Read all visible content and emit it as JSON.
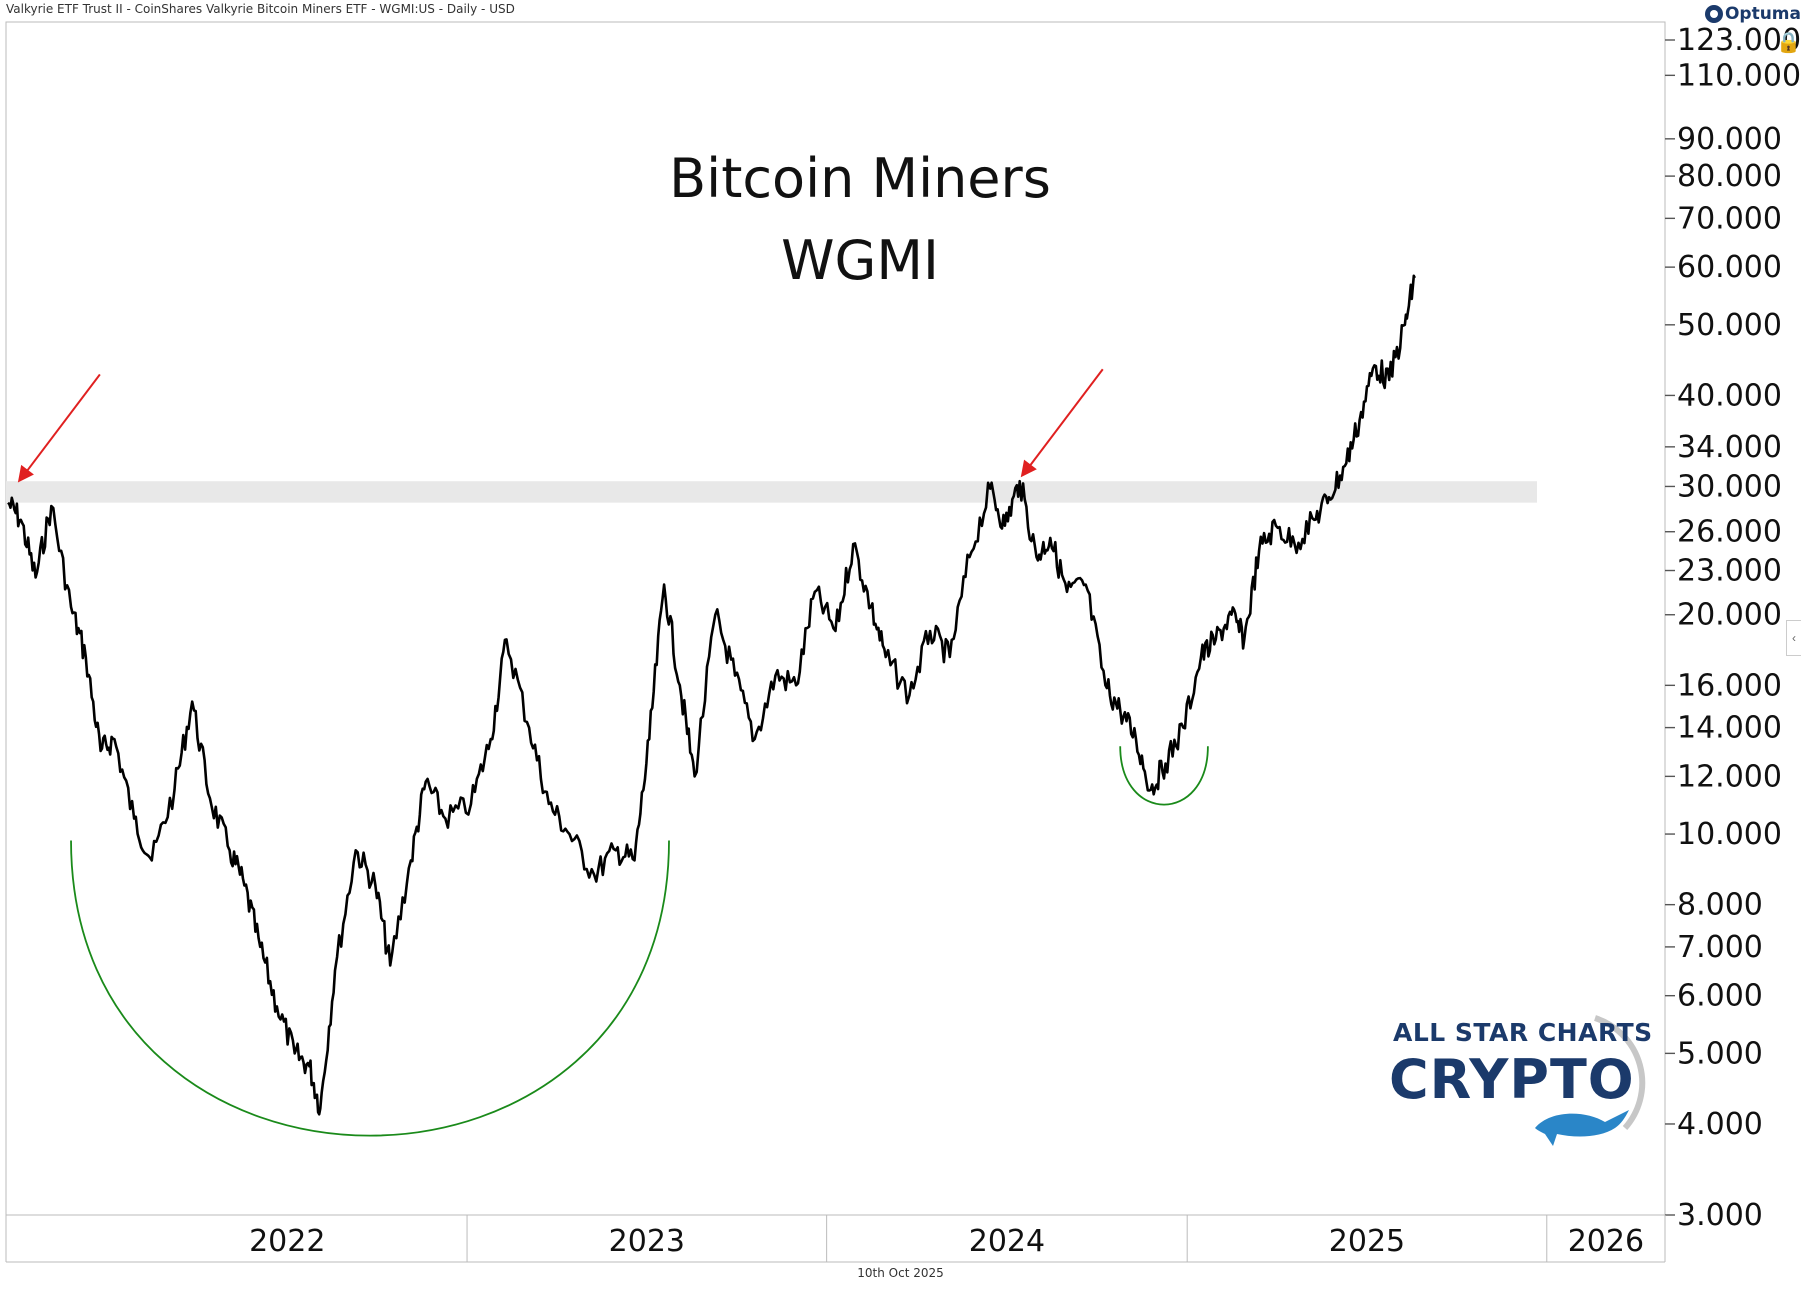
{
  "header": {
    "instrument": "Valkyrie ETF Trust II - CoinShares Valkyrie Bitcoin Miners ETF - WGMI:US - Daily - USD",
    "logo_text": "Optuma",
    "lock_icon": "lock-icon",
    "collapse_icon": "chevron-left-icon"
  },
  "footer": {
    "date": "10th Oct 2025"
  },
  "brand": {
    "line1": "ALL STAR CHARTS",
    "line2": "CRYPTO",
    "icon": "whale-icon"
  },
  "colors": {
    "price_line": "#000000",
    "arrow": "#e02020",
    "arc": "#1a8a1a",
    "band": "#e8e8e8",
    "brand": "#1b3a6b"
  },
  "chart_data": {
    "type": "line",
    "title": "Bitcoin Miners",
    "subtitle": "WGMI",
    "yscale": "log",
    "ylim": [
      3.0,
      123.0
    ],
    "y_ticks": [
      "123.000",
      "110.000",
      "90.000",
      "80.000",
      "70.000",
      "60.000",
      "50.000",
      "40.000",
      "34.000",
      "30.000",
      "26.000",
      "23.000",
      "20.000",
      "16.000",
      "14.000",
      "12.000",
      "10.000",
      "8.000",
      "7.000",
      "6.000",
      "5.000",
      "4.000",
      "3.000"
    ],
    "x_ticks": [
      "2022",
      "2023",
      "2024",
      "2025",
      "2026"
    ],
    "xlim": [
      "2021-09-20",
      "2026-05-01"
    ],
    "resistance_zone": [
      28.5,
      30.5
    ],
    "grid": false,
    "legend": "none",
    "series": [
      {
        "values": [
          [
            "2021-09-22",
            28.5
          ],
          [
            "2021-10-05",
            27.0
          ],
          [
            "2021-10-20",
            22.5
          ],
          [
            "2021-11-05",
            28.2
          ],
          [
            "2021-11-25",
            20.5
          ],
          [
            "2021-12-10",
            17.5
          ],
          [
            "2021-12-25",
            13.0
          ],
          [
            "2022-01-08",
            13.5
          ],
          [
            "2022-01-28",
            10.5
          ],
          [
            "2022-02-15",
            9.2
          ],
          [
            "2022-03-10",
            11.5
          ],
          [
            "2022-03-28",
            15.2
          ],
          [
            "2022-04-15",
            11.2
          ],
          [
            "2022-05-05",
            9.5
          ],
          [
            "2022-05-20",
            8.5
          ],
          [
            "2022-06-05",
            7.0
          ],
          [
            "2022-06-22",
            5.8
          ],
          [
            "2022-07-10",
            5.0
          ],
          [
            "2022-07-25",
            4.8
          ],
          [
            "2022-08-05",
            4.2
          ],
          [
            "2022-08-20",
            6.5
          ],
          [
            "2022-09-10",
            9.5
          ],
          [
            "2022-09-30",
            8.5
          ],
          [
            "2022-10-15",
            6.6
          ],
          [
            "2022-11-05",
            9.2
          ],
          [
            "2022-11-20",
            11.8
          ],
          [
            "2022-12-10",
            10.5
          ],
          [
            "2023-01-05",
            11.0
          ],
          [
            "2023-01-25",
            13.5
          ],
          [
            "2023-02-10",
            18.5
          ],
          [
            "2023-03-05",
            14.0
          ],
          [
            "2023-03-25",
            11.0
          ],
          [
            "2023-04-15",
            10.0
          ],
          [
            "2023-05-10",
            8.8
          ],
          [
            "2023-06-01",
            9.5
          ],
          [
            "2023-06-20",
            9.2
          ],
          [
            "2023-07-05",
            13.5
          ],
          [
            "2023-07-20",
            22.0
          ],
          [
            "2023-08-05",
            16.0
          ],
          [
            "2023-08-20",
            12.0
          ],
          [
            "2023-09-10",
            20.0
          ],
          [
            "2023-09-30",
            16.5
          ],
          [
            "2023-10-20",
            13.5
          ],
          [
            "2023-11-10",
            16.5
          ],
          [
            "2023-12-01",
            16.0
          ],
          [
            "2023-12-20",
            21.5
          ],
          [
            "2024-01-10",
            19.0
          ],
          [
            "2024-01-28",
            25.0
          ],
          [
            "2024-02-15",
            20.5
          ],
          [
            "2024-03-01",
            17.5
          ],
          [
            "2024-03-25",
            15.5
          ],
          [
            "2024-04-15",
            19.0
          ],
          [
            "2024-05-05",
            17.5
          ],
          [
            "2024-05-25",
            24.0
          ],
          [
            "2024-06-15",
            29.8
          ],
          [
            "2024-06-30",
            26.5
          ],
          [
            "2024-07-15",
            30.5
          ],
          [
            "2024-08-01",
            24.0
          ],
          [
            "2024-08-15",
            25.5
          ],
          [
            "2024-09-01",
            21.5
          ],
          [
            "2024-09-20",
            22.0
          ],
          [
            "2024-10-10",
            16.0
          ],
          [
            "2024-10-25",
            14.8
          ],
          [
            "2024-11-10",
            13.5
          ],
          [
            "2024-11-25",
            11.5
          ],
          [
            "2024-12-10",
            12.5
          ],
          [
            "2024-12-28",
            14.0
          ],
          [
            "2025-01-15",
            17.5
          ],
          [
            "2025-01-30",
            18.5
          ],
          [
            "2025-02-15",
            20.0
          ],
          [
            "2025-02-28",
            18.5
          ],
          [
            "2025-03-15",
            24.5
          ],
          [
            "2025-04-01",
            26.5
          ],
          [
            "2025-04-20",
            25.0
          ],
          [
            "2025-05-10",
            27.0
          ],
          [
            "2025-05-25",
            29.0
          ],
          [
            "2025-06-10",
            32.0
          ],
          [
            "2025-06-25",
            37.0
          ],
          [
            "2025-07-10",
            44.0
          ],
          [
            "2025-07-25",
            42.0
          ],
          [
            "2025-08-10",
            50.0
          ],
          [
            "2025-08-20",
            58.0
          ]
        ]
      }
    ],
    "annotations": [
      {
        "type": "arrow",
        "color": "red",
        "target": [
          "2021-09-28",
          30.0
        ]
      },
      {
        "type": "arrow",
        "color": "red",
        "target": [
          "2024-07-12",
          30.5
        ]
      },
      {
        "type": "arc",
        "color": "green",
        "from": [
          "2021-11-25",
          9.8
        ],
        "to": [
          "2023-07-25",
          9.8
        ],
        "low": 3.9
      },
      {
        "type": "arc",
        "color": "green",
        "from": [
          "2024-10-25",
          13.2
        ],
        "to": [
          "2025-01-22",
          13.2
        ],
        "low": 11.0
      }
    ]
  }
}
